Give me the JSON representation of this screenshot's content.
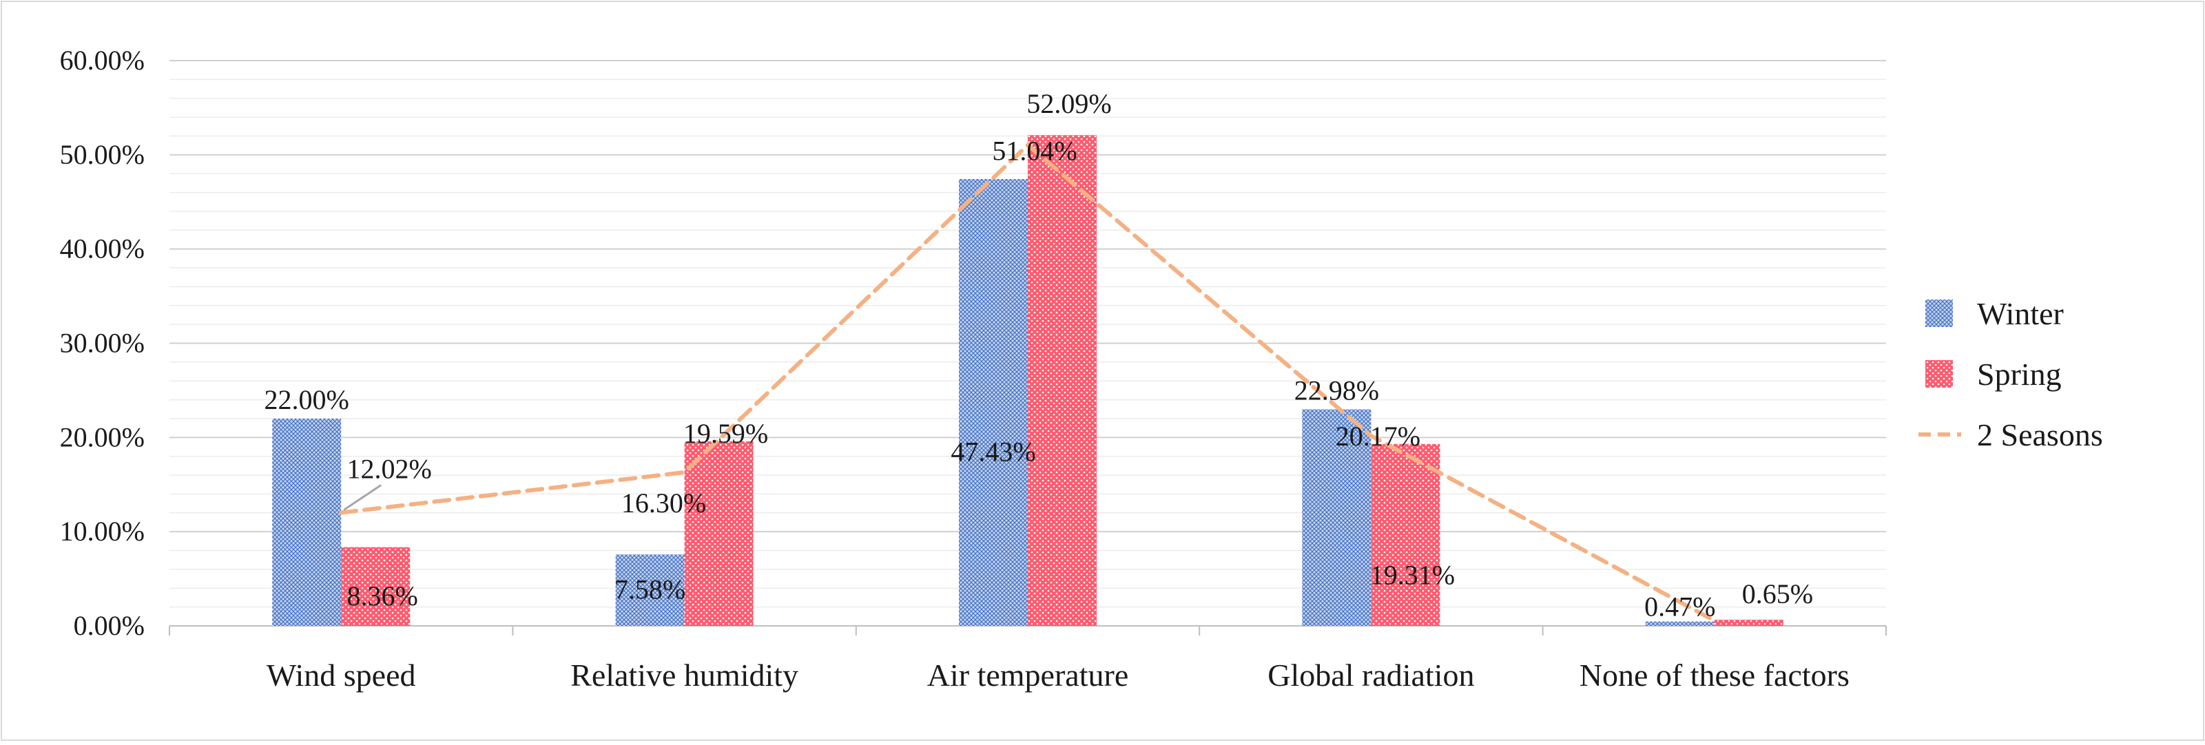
{
  "chart_data": {
    "type": "bar",
    "title": "",
    "xlabel": "",
    "ylabel": "",
    "ylim": [
      0,
      0.6
    ],
    "yticks": [
      0,
      0.1,
      0.2,
      0.3,
      0.4,
      0.5,
      0.6
    ],
    "ytick_labels": [
      "0.00%",
      "10.00%",
      "20.00%",
      "30.00%",
      "40.00%",
      "50.00%",
      "60.00%"
    ],
    "minor_grid_step": 0.02,
    "grid": true,
    "legend_position": "right",
    "categories": [
      "Wind speed",
      "Relative humidity",
      "Air temperature",
      "Global radiation",
      "None of these factors"
    ],
    "series": [
      {
        "name": "Winter",
        "type": "bar",
        "pattern": "crosshatch",
        "color": "#4472c4",
        "values": [
          0.22,
          0.0758,
          0.4743,
          0.2298,
          0.0047
        ],
        "labels": [
          "22.00%",
          "7.58%",
          "47.43%",
          "22.98%",
          "0.47%"
        ]
      },
      {
        "name": "Spring",
        "type": "bar",
        "pattern": "dots",
        "color": "#ff5a6e",
        "values": [
          0.0836,
          0.1959,
          0.5209,
          0.1931,
          0.0065
        ],
        "labels": [
          "8.36%",
          "19.59%",
          "52.09%",
          "19.31%",
          "0.65%"
        ]
      },
      {
        "name": "2 Seasons",
        "type": "line",
        "style": "dashed",
        "color": "#f4b183",
        "values": [
          0.1202,
          0.163,
          0.5104,
          0.2017,
          0.0056
        ],
        "labels": [
          "12.02%",
          "16.30%",
          "51.04%",
          "20.17%",
          ""
        ]
      }
    ]
  }
}
